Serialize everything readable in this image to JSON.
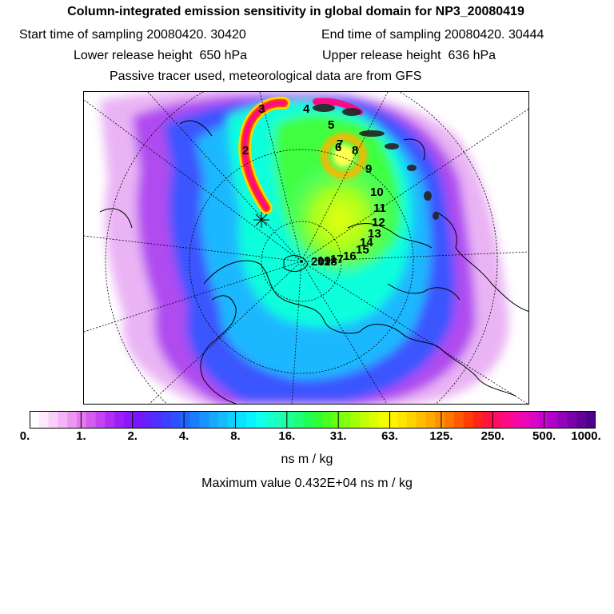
{
  "chart_data": {
    "type": "heatmap",
    "title": "Column-integrated emission sensitivity in global domain for NP3_20080419",
    "start_label": "Start time of sampling",
    "start_value": "20080420. 30420",
    "end_label": "End time of sampling",
    "end_value": "20080420. 30444",
    "lower_label": "Lower release height",
    "lower_value": "650 hPa",
    "upper_label": "Upper release height",
    "upper_value": "636 hPa",
    "note": "Passive tracer used, meteorological data are from GFS",
    "units": "ns m / kg",
    "max_value_label": "Maximum value  0.432E+04 ns m / kg",
    "colorbar": {
      "scale": "log",
      "ticks": [
        "0.",
        "1.",
        "2.",
        "4.",
        "8.",
        "16.",
        "31.",
        "63.",
        "125.",
        "250.",
        "500.",
        "1000."
      ],
      "colors": [
        "#ffffff",
        "#fde8fd",
        "#f9d0fa",
        "#f4b4f6",
        "#ee96f2",
        "#e678ef",
        "#d55cf0",
        "#c444f2",
        "#b22ef5",
        "#9e1ef8",
        "#8a18fb",
        "#7618fd",
        "#6422ff",
        "#5030ff",
        "#3c40ff",
        "#2a52ff",
        "#1e66ff",
        "#1a7cff",
        "#1a92ff",
        "#1aa8ff",
        "#14bcff",
        "#0ed0ff",
        "#0ae2ff",
        "#08f2ff",
        "#10ffec",
        "#18ffd2",
        "#1cffb4",
        "#1eff96",
        "#20ff78",
        "#20ff58",
        "#2cff3a",
        "#48ff22",
        "#66ff14",
        "#84ff0e",
        "#a2ff08",
        "#c0ff06",
        "#dcff04",
        "#f0ff02",
        "#fff400",
        "#ffe400",
        "#ffd200",
        "#ffbe00",
        "#ffa800",
        "#ff9000",
        "#ff7600",
        "#ff5a00",
        "#ff3e00",
        "#ff2418",
        "#ff1440",
        "#ff0c64",
        "#ff0a86",
        "#f808a2",
        "#ea08b8",
        "#d806c6",
        "#c404cc",
        "#ae02c8",
        "#9402bc",
        "#7a02aa",
        "#62029a",
        "#4c028a"
      ]
    },
    "trajectory_labels": [
      "2",
      "3",
      "4",
      "5",
      "6",
      "7",
      "8",
      "9",
      "10",
      "11",
      "12",
      "13",
      "14",
      "15",
      "16",
      "17",
      "18",
      "19",
      "20"
    ]
  }
}
